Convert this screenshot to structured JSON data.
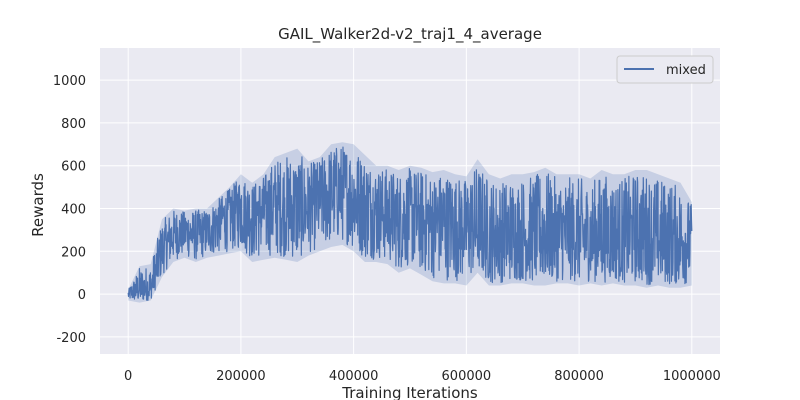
{
  "chart_data": {
    "type": "line",
    "title": "GAIL_Walker2d-v2_traj1_4_average",
    "xlabel": "Training Iterations",
    "ylabel": "Rewards",
    "xlim": [
      -50000,
      1050000
    ],
    "ylim": [
      -280,
      1150
    ],
    "xticks": [
      0,
      200000,
      400000,
      600000,
      800000,
      1000000
    ],
    "yticks": [
      -200,
      0,
      200,
      400,
      600,
      800,
      1000
    ],
    "grid": true,
    "legend": {
      "position": "top-right",
      "entries": [
        "mixed"
      ]
    },
    "series": [
      {
        "name": "mixed",
        "color": "#4c72b0",
        "x": [
          0,
          20000,
          40000,
          60000,
          80000,
          100000,
          120000,
          140000,
          160000,
          180000,
          200000,
          220000,
          240000,
          260000,
          280000,
          300000,
          320000,
          340000,
          360000,
          380000,
          400000,
          420000,
          440000,
          460000,
          480000,
          500000,
          520000,
          540000,
          560000,
          580000,
          600000,
          620000,
          640000,
          660000,
          680000,
          700000,
          720000,
          740000,
          760000,
          780000,
          800000,
          820000,
          840000,
          860000,
          880000,
          900000,
          920000,
          940000,
          960000,
          980000,
          1000000
        ],
        "y": [
          0,
          20,
          20,
          200,
          280,
          300,
          280,
          300,
          350,
          380,
          420,
          380,
          400,
          420,
          400,
          380,
          420,
          450,
          480,
          500,
          450,
          420,
          400,
          380,
          350,
          380,
          350,
          330,
          350,
          330,
          320,
          300,
          250,
          280,
          260,
          260,
          270,
          300,
          250,
          280,
          260,
          250,
          280,
          260,
          250,
          280,
          270,
          250,
          260,
          240,
          250
        ],
        "min": [
          -30,
          -40,
          -30,
          80,
          150,
          170,
          150,
          170,
          180,
          190,
          200,
          150,
          160,
          170,
          160,
          150,
          180,
          200,
          220,
          230,
          200,
          150,
          150,
          140,
          100,
          120,
          90,
          60,
          50,
          50,
          40,
          100,
          40,
          40,
          50,
          50,
          40,
          40,
          50,
          50,
          40,
          50,
          40,
          50,
          40,
          40,
          30,
          40,
          30,
          30,
          40
        ],
        "max": [
          20,
          130,
          140,
          350,
          400,
          390,
          400,
          400,
          450,
          500,
          560,
          520,
          560,
          640,
          660,
          680,
          620,
          640,
          700,
          710,
          700,
          650,
          600,
          600,
          580,
          600,
          590,
          570,
          580,
          560,
          550,
          630,
          560,
          540,
          560,
          560,
          570,
          590,
          560,
          560,
          560,
          540,
          580,
          560,
          560,
          580,
          580,
          560,
          540,
          520,
          430
        ]
      }
    ]
  }
}
